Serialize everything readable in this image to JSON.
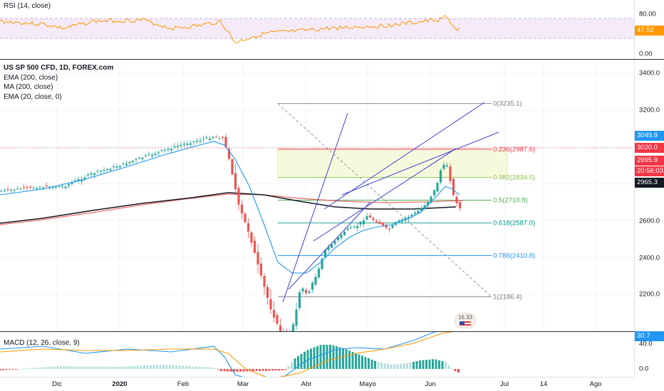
{
  "rsi": {
    "legend": "RSI (14, close)",
    "axis_labels": [
      "80.00",
      "0.00"
    ],
    "current_value": "47.52",
    "current_color": "#ff9800"
  },
  "main": {
    "legend": {
      "title": "US SP 500 CFD, 1D, FOREX.com",
      "ema200": "EMA (200, close)",
      "ma200": "MA (200, close)",
      "ema20": "EMA (20, close, 0)"
    },
    "axis_labels": [
      "3400.0",
      "3200.0",
      "2600.0",
      "2400.0",
      "2200.0"
    ],
    "tags": [
      {
        "text": "3049.9",
        "color": "#2196f3"
      },
      {
        "text": "3020.0",
        "color": "#f23645"
      },
      {
        "text": "2995.9",
        "color": "#f23645"
      },
      {
        "text": "20:56:03",
        "color": "#f23645"
      },
      {
        "text": "2965.3",
        "color": "#131722"
      }
    ],
    "fib_levels": [
      {
        "label": "0(3235.1)",
        "color": "#787b86",
        "price": 3235.1
      },
      {
        "label": "0.236(2987.6)",
        "color": "#f23645",
        "price": 2987.6
      },
      {
        "label": "0.382(2834.5)",
        "color": "#8bc34a",
        "price": 2834.5
      },
      {
        "label": "0.5(2710.8)",
        "color": "#4caf50",
        "price": 2710.8
      },
      {
        "label": "0.618(2587.0)",
        "color": "#009688",
        "price": 2587.0
      },
      {
        "label": "0.786(2410.8)",
        "color": "#2196f3",
        "price": 2410.8
      },
      {
        "label": "1(2186.4)",
        "color": "#787b86",
        "price": 2186.4
      }
    ],
    "event_badge": "16.33"
  },
  "macd": {
    "legend": "MACD (12, 26, close, 9)",
    "axis_labels": [
      "40.0",
      "0.0"
    ],
    "current_value": "30.7"
  },
  "time_axis": [
    {
      "text": "Dic",
      "bold": false
    },
    {
      "text": "2020",
      "bold": true
    },
    {
      "text": "Feb",
      "bold": false
    },
    {
      "text": "Mar",
      "bold": false
    },
    {
      "text": "Abr",
      "bold": false
    },
    {
      "text": "Mayo",
      "bold": false
    },
    {
      "text": "Jun",
      "bold": false
    },
    {
      "text": "Jul",
      "bold": false
    },
    {
      "text": "14",
      "bold": false
    },
    {
      "text": "Ago",
      "bold": false
    }
  ],
  "colors": {
    "up": "#26a69a",
    "down": "#ef5350",
    "ema20": "#2196f3",
    "ema200": "#131722",
    "ma200": "#ef5350",
    "rsi_line": "#ff9800",
    "rsi_band": "#9c27b0",
    "channel": "#3f3fd1"
  }
}
